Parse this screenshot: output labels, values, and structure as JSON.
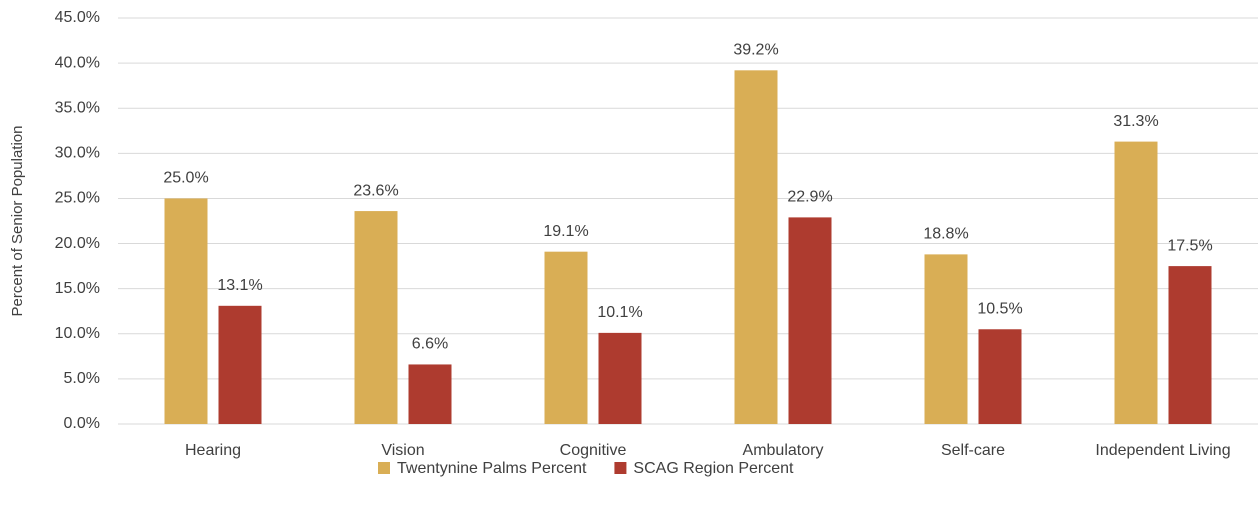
{
  "chart_data": {
    "type": "bar",
    "y_axis_label": "Percent of Senior Population",
    "categories": [
      "Hearing",
      "Vision",
      "Cognitive",
      "Ambulatory",
      "Self-care",
      "Independent Living"
    ],
    "series": [
      {
        "name": "Twentynine Palms Percent",
        "color": "#d9ae55",
        "values": [
          25.0,
          23.6,
          19.1,
          39.2,
          18.8,
          31.3
        ],
        "value_labels": [
          "25.0%",
          "23.6%",
          "19.1%",
          "39.2%",
          "18.8%",
          "31.3%"
        ]
      },
      {
        "name": "SCAG Region Percent",
        "color": "#ae3b2f",
        "values": [
          13.1,
          6.6,
          10.1,
          22.9,
          10.5,
          17.5
        ],
        "value_labels": [
          "13.1%",
          "6.6%",
          "10.1%",
          "22.9%",
          "10.5%",
          "17.5%"
        ]
      }
    ],
    "ylim": [
      0,
      45
    ],
    "yticks": [
      {
        "value": 0,
        "label": "0.0%"
      },
      {
        "value": 5,
        "label": "5.0%"
      },
      {
        "value": 10,
        "label": "10.0%"
      },
      {
        "value": 15,
        "label": "15.0%"
      },
      {
        "value": 20,
        "label": "20.0%"
      },
      {
        "value": 25,
        "label": "25.0%"
      },
      {
        "value": 30,
        "label": "30.0%"
      },
      {
        "value": 35,
        "label": "35.0%"
      },
      {
        "value": 40,
        "label": "40.0%"
      },
      {
        "value": 45,
        "label": "45.0%"
      }
    ],
    "grid": true,
    "legend": "bottom"
  }
}
